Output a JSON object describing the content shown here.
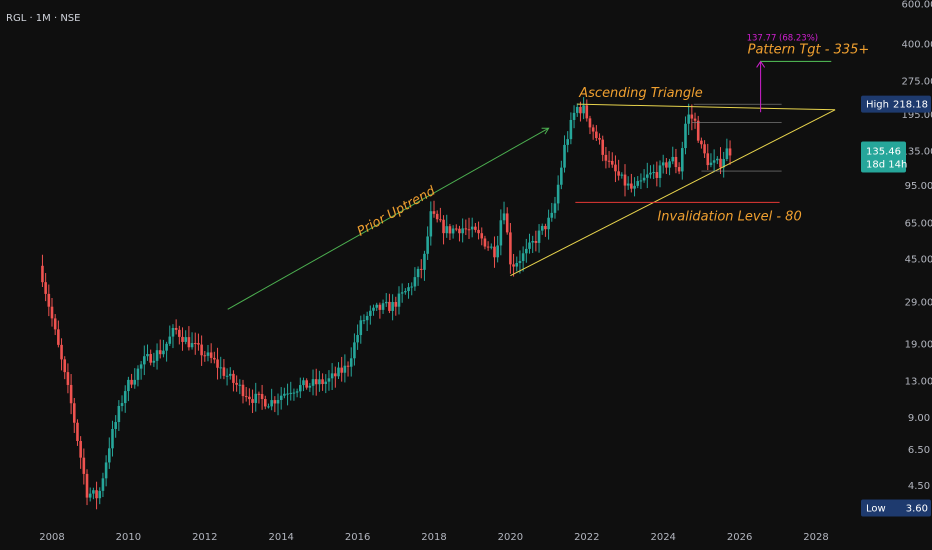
{
  "header": {
    "symbol_label": "RGL · 1M · NSE"
  },
  "chart_data": {
    "type": "candlestick",
    "timeframe": "1M",
    "scale": "log",
    "ylim": [
      3.5,
      600
    ],
    "xlim": [
      2007.4,
      2029.0
    ],
    "y_ticks": [
      "600.00",
      "400.00",
      "275.00",
      "195.00",
      "135.00",
      "95.00",
      "65.00",
      "45.00",
      "29.00",
      "19.00",
      "13.00",
      "9.00",
      "6.50",
      "4.50"
    ],
    "y_tick_values": [
      600,
      400,
      275,
      195,
      135,
      95,
      65,
      45,
      29,
      19,
      13,
      9,
      6.5,
      4.5
    ],
    "x_ticks": [
      "2008",
      "2010",
      "2012",
      "2014",
      "2016",
      "2018",
      "2020",
      "2022",
      "2024",
      "2026",
      "2028"
    ],
    "x_tick_values": [
      2008,
      2010,
      2012,
      2014,
      2016,
      2018,
      2020,
      2022,
      2024,
      2026,
      2028
    ],
    "colors": {
      "up": "#26a69a",
      "down": "#ef5350",
      "background": "#0f0f0f",
      "trendline": "#e8d44d",
      "uptrend": "#4caf50",
      "invalidation": "#e53935",
      "target": "#4caf50",
      "measure": "#d020d0",
      "annotation": "#f0a030"
    },
    "key_points": [
      {
        "t": 2007.8,
        "price": 40
      },
      {
        "t": 2008.2,
        "price": 20
      },
      {
        "t": 2008.6,
        "price": 10
      },
      {
        "t": 2009.0,
        "price": 4.2
      },
      {
        "t": 2009.3,
        "price": 4.0
      },
      {
        "t": 2009.6,
        "price": 7
      },
      {
        "t": 2010.0,
        "price": 12
      },
      {
        "t": 2010.5,
        "price": 16
      },
      {
        "t": 2011.0,
        "price": 18
      },
      {
        "t": 2011.3,
        "price": 22
      },
      {
        "t": 2011.7,
        "price": 19
      },
      {
        "t": 2012.3,
        "price": 16
      },
      {
        "t": 2012.8,
        "price": 13
      },
      {
        "t": 2013.3,
        "price": 11
      },
      {
        "t": 2013.8,
        "price": 10.5
      },
      {
        "t": 2014.3,
        "price": 12
      },
      {
        "t": 2014.8,
        "price": 12.5
      },
      {
        "t": 2015.3,
        "price": 13
      },
      {
        "t": 2015.8,
        "price": 15
      },
      {
        "t": 2016.2,
        "price": 24
      },
      {
        "t": 2016.6,
        "price": 27
      },
      {
        "t": 2017.0,
        "price": 28
      },
      {
        "t": 2017.4,
        "price": 33
      },
      {
        "t": 2017.8,
        "price": 42
      },
      {
        "t": 2018.0,
        "price": 70
      },
      {
        "t": 2018.4,
        "price": 60
      },
      {
        "t": 2018.8,
        "price": 62
      },
      {
        "t": 2019.2,
        "price": 58
      },
      {
        "t": 2019.7,
        "price": 48
      },
      {
        "t": 2019.9,
        "price": 80
      },
      {
        "t": 2020.1,
        "price": 42
      },
      {
        "t": 2020.5,
        "price": 48
      },
      {
        "t": 2020.9,
        "price": 60
      },
      {
        "t": 2021.2,
        "price": 70
      },
      {
        "t": 2021.5,
        "price": 140
      },
      {
        "t": 2021.8,
        "price": 210
      },
      {
        "t": 2022.0,
        "price": 205
      },
      {
        "t": 2022.3,
        "price": 160
      },
      {
        "t": 2022.7,
        "price": 115
      },
      {
        "t": 2023.0,
        "price": 100
      },
      {
        "t": 2023.3,
        "price": 90
      },
      {
        "t": 2023.7,
        "price": 105
      },
      {
        "t": 2024.0,
        "price": 110
      },
      {
        "t": 2024.3,
        "price": 125
      },
      {
        "t": 2024.5,
        "price": 112
      },
      {
        "t": 2024.7,
        "price": 195
      },
      {
        "t": 2024.9,
        "price": 185
      },
      {
        "t": 2025.1,
        "price": 135
      },
      {
        "t": 2025.3,
        "price": 118
      },
      {
        "t": 2025.55,
        "price": 118
      },
      {
        "t": 2025.75,
        "price": 135
      }
    ],
    "price_badges": [
      {
        "name": "high",
        "label": "High",
        "value": "218.18",
        "price": 218.18
      },
      {
        "name": "current",
        "value": "135.46",
        "countdown": "18d 14h",
        "price": 135.46
      },
      {
        "name": "low",
        "label": "Low",
        "value": "3.60",
        "price": 3.6
      }
    ],
    "annotations": {
      "prior_uptrend": "Prior Uptrend",
      "ascending_triangle": "Ascending Triangle",
      "invalidation": "Invalidation Level - 80",
      "pattern_target": "Pattern Tgt - 335+",
      "measure": "137.77 (68.23%)"
    },
    "lines": {
      "triangle_upper": {
        "from": [
          2021.75,
          217
        ],
        "to": [
          2028.5,
          205
        ]
      },
      "triangle_lower": {
        "from": [
          2020.0,
          38
        ],
        "to": [
          2028.5,
          205
        ]
      },
      "invalidation": {
        "from": [
          2021.7,
          80
        ],
        "to": [
          2026.0,
          80
        ],
        "price": 80
      },
      "uptrend_arrow": {
        "from": [
          2012.6,
          27
        ],
        "to": [
          2021.0,
          170
        ]
      },
      "target_line": {
        "from": [
          2026.55,
          335
        ],
        "to": [
          2028.4,
          335
        ],
        "price": 335
      },
      "measure_arrow": {
        "t": 2026.55,
        "from": 200,
        "to": 335
      }
    }
  }
}
